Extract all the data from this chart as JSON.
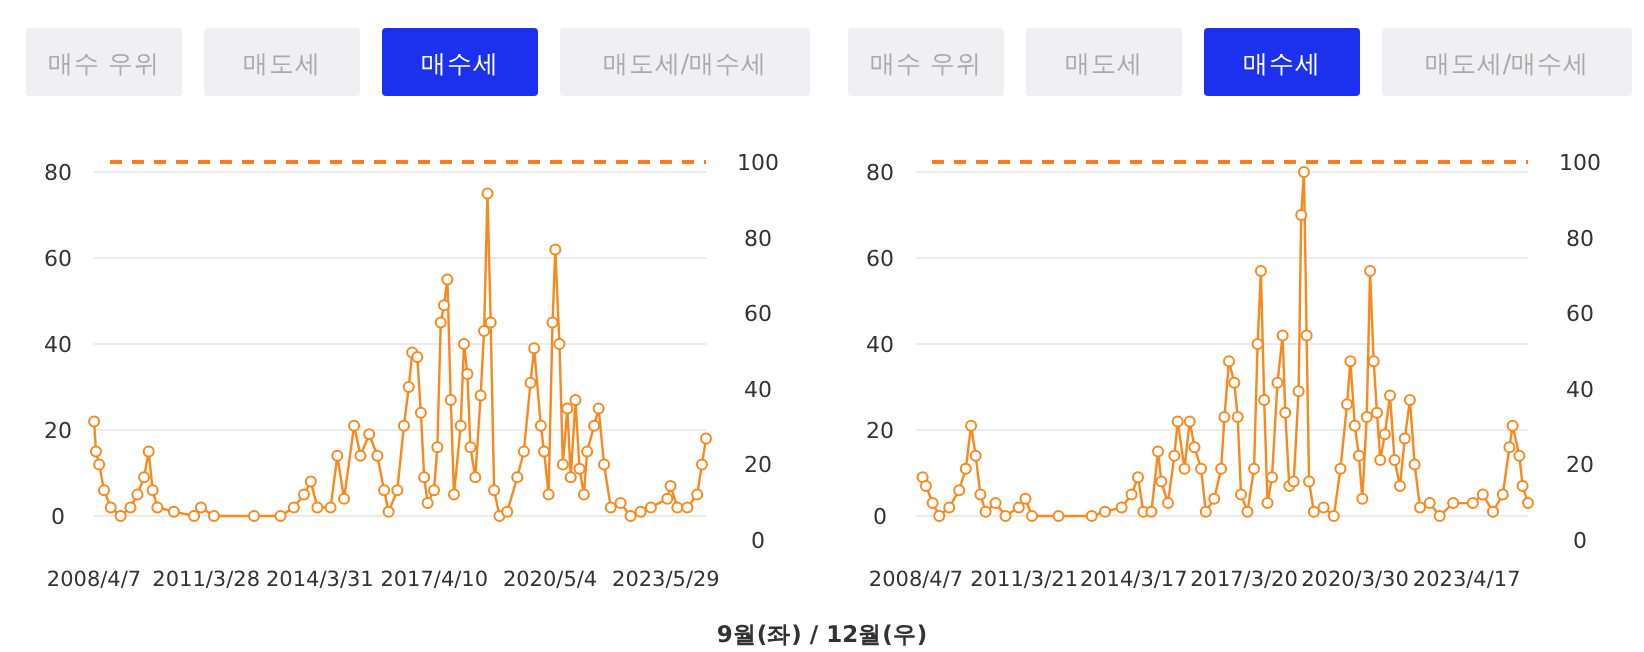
{
  "chart_data": [
    {
      "type": "line",
      "color": "#f7891f",
      "marker": "circle",
      "grid": "y",
      "annotations": [
        "매수 우위",
        "매도세",
        "매수세",
        "매도세/매수세",
        "9월(좌)   /   12월(우)"
      ],
      "x": [
        "2008-04-08",
        "2008-04-26",
        "2008-05-27",
        "2008-07-13",
        "2008-09-16",
        "2008-12-21",
        "2009-03-26",
        "2009-06-01",
        "2009-08-04",
        "2009-09-18",
        "2009-10-26",
        "2009-12-11",
        "2010-05-19",
        "2010-12-01",
        "2011-02-05",
        "2011-06-11",
        "2012-07-03",
        "2013-03-16",
        "2013-07-23",
        "2013-10-28",
        "2014-01-03",
        "2014-03-07",
        "2014-07-13",
        "2014-09-16",
        "2014-11-20",
        "2015-02-25",
        "2015-04-28",
        "2015-07-21",
        "2015-10-08",
        "2015-12-12",
        "2016-01-25",
        "2016-04-18",
        "2016-06-21",
        "2016-08-07",
        "2016-09-09",
        "2016-10-28",
        "2016-12-02",
        "2017-01-03",
        "2017-02-05",
        "2017-04-08",
        "2017-05-10",
        "2017-06-12",
        "2017-07-13",
        "2017-08-15",
        "2017-09-17",
        "2017-10-18",
        "2017-12-22",
        "2018-01-23",
        "2018-02-25",
        "2018-03-26",
        "2018-05-12",
        "2018-07-03",
        "2018-08-05",
        "2018-09-07",
        "2018-10-08",
        "2018-11-10",
        "2019-01-01",
        "2019-03-17",
        "2019-06-22",
        "2019-08-25",
        "2019-10-28",
        "2019-12-02",
        "2020-02-05",
        "2020-03-07",
        "2020-04-20",
        "2020-05-28",
        "2020-06-24",
        "2020-08-03",
        "2020-09-05",
        "2020-10-18",
        "2020-11-20",
        "2021-01-05",
        "2021-02-13",
        "2021-03-27",
        "2021-04-28",
        "2021-07-04",
        "2021-08-17",
        "2021-10-08",
        "2021-12-12",
        "2022-03-17",
        "2022-06-22",
        "2022-09-27",
        "2023-01-04",
        "2023-06-12",
        "2023-07-13",
        "2023-09-17",
        "2023-12-22",
        "2024-03-27",
        "2024-05-12",
        "2024-06-20"
      ],
      "values": [
        22,
        15,
        12,
        6,
        2,
        0,
        2,
        5,
        9,
        15,
        6,
        2,
        1,
        0,
        2,
        0,
        0,
        0,
        2,
        5,
        8,
        2,
        2,
        14,
        4,
        21,
        14,
        19,
        14,
        6,
        1,
        6,
        21,
        30,
        38,
        37,
        24,
        9,
        3,
        6,
        16,
        45,
        49,
        55,
        27,
        5,
        21,
        40,
        33,
        16,
        9,
        28,
        43,
        75,
        45,
        6,
        0,
        1,
        9,
        15,
        31,
        39,
        21,
        15,
        5,
        45,
        62,
        40,
        12,
        25,
        9,
        27,
        11,
        5,
        15,
        21,
        25,
        12,
        2,
        3,
        0,
        1,
        2,
        4,
        7,
        2,
        2,
        5,
        12,
        18
      ],
      "xlim": [
        "2008-04-07",
        "2024-06-20"
      ],
      "xticks": [
        {
          "value": "2008-04-07",
          "label": "2008/4/7"
        },
        {
          "value": "2011-03-28",
          "label": "2011/3/28"
        },
        {
          "value": "2014-03-31",
          "label": "2014/3/31"
        },
        {
          "value": "2017-04-10",
          "label": "2017/4/10"
        },
        {
          "value": "2020-05-04",
          "label": "2020/5/4"
        },
        {
          "value": "2023-05-29",
          "label": "2023/5/29"
        }
      ],
      "ylim": [
        0,
        80
      ],
      "yticks": [
        0,
        20,
        40,
        60,
        80
      ],
      "y2lim": [
        0,
        100
      ],
      "y2ticks": [
        0,
        20,
        40,
        60,
        80,
        100
      ],
      "ref_lines": [
        {
          "axis": "y2",
          "value": 100,
          "color": "#ff7a21",
          "line_style": "dashed"
        }
      ]
    },
    {
      "type": "line",
      "color": "#f7891f",
      "marker": "circle",
      "grid": "y",
      "annotations": [
        "매수 우위",
        "매도세",
        "매수세",
        "매도세/매수세"
      ],
      "x": [
        "2008-06-12",
        "2008-07-15",
        "2008-09-20",
        "2008-11-25",
        "2009-03-04",
        "2009-06-11",
        "2009-08-16",
        "2009-10-08",
        "2009-11-23",
        "2010-01-09",
        "2010-03-02",
        "2010-06-09",
        "2010-09-16",
        "2011-01-26",
        "2011-04-03",
        "2011-06-07",
        "2012-02-26",
        "2013-01-22",
        "2013-06-04",
        "2013-11-16",
        "2014-02-23",
        "2014-04-28",
        "2014-06-21",
        "2014-09-09",
        "2014-11-14",
        "2014-12-17",
        "2015-02-21",
        "2015-04-26",
        "2015-05-29",
        "2015-08-05",
        "2015-09-26",
        "2015-11-12",
        "2016-01-17",
        "2016-03-04",
        "2016-05-27",
        "2016-08-04",
        "2016-09-06",
        "2016-10-21",
        "2016-12-13",
        "2017-01-16",
        "2017-02-18",
        "2017-04-23",
        "2017-06-28",
        "2017-08-02",
        "2017-09-04",
        "2017-10-07",
        "2017-11-09",
        "2017-12-24",
        "2018-02-16",
        "2018-04-09",
        "2018-05-05",
        "2018-06-14",
        "2018-07-28",
        "2018-09-15",
        "2018-10-11",
        "2018-11-07",
        "2018-12-04",
        "2018-12-28",
        "2019-02-14",
        "2019-05-22",
        "2019-09-01",
        "2019-11-06",
        "2020-01-11",
        "2020-02-13",
        "2020-03-28",
        "2020-05-08",
        "2020-06-11",
        "2020-07-25",
        "2020-08-27",
        "2020-10-02",
        "2020-11-04",
        "2020-12-07",
        "2021-01-21",
        "2021-03-14",
        "2021-04-28",
        "2021-06-21",
        "2021-08-08",
        "2021-09-28",
        "2021-11-14",
        "2022-01-07",
        "2022-04-14",
        "2022-07-22",
        "2022-12-03",
        "2023-06-17",
        "2023-09-25",
        "2024-01-04",
        "2024-04-11",
        "2024-06-16",
        "2024-07-18",
        "2024-09-23",
        "2024-10-25",
        "2024-12-18"
      ],
      "values": [
        9,
        7,
        3,
        0,
        2,
        6,
        11,
        21,
        14,
        5,
        1,
        3,
        0,
        2,
        4,
        0,
        0,
        0,
        1,
        2,
        5,
        9,
        1,
        1,
        15,
        8,
        3,
        14,
        22,
        11,
        22,
        16,
        11,
        1,
        4,
        11,
        23,
        36,
        31,
        23,
        5,
        1,
        11,
        40,
        57,
        27,
        3,
        9,
        31,
        42,
        24,
        7,
        8,
        29,
        70,
        80,
        42,
        8,
        1,
        2,
        0,
        11,
        26,
        36,
        21,
        14,
        4,
        23,
        57,
        36,
        24,
        13,
        19,
        28,
        13,
        7,
        18,
        27,
        12,
        2,
        3,
        0,
        3,
        3,
        5,
        1,
        5,
        16,
        21,
        14,
        7,
        3
      ],
      "xlim": [
        "2008-04-07",
        "2024-12-18"
      ],
      "xticks": [
        {
          "value": "2008-04-07",
          "label": "2008/4/7"
        },
        {
          "value": "2011-03-21",
          "label": "2011/3/21"
        },
        {
          "value": "2014-03-17",
          "label": "2014/3/17"
        },
        {
          "value": "2017-03-20",
          "label": "2017/3/20"
        },
        {
          "value": "2020-03-30",
          "label": "2020/3/30"
        },
        {
          "value": "2023-04-17",
          "label": "2023/4/17"
        }
      ],
      "ylim": [
        0,
        80
      ],
      "yticks": [
        0,
        20,
        40,
        60,
        80
      ],
      "y2lim": [
        0,
        100
      ],
      "y2ticks": [
        0,
        20,
        40,
        60,
        80,
        100
      ],
      "ref_lines": [
        {
          "axis": "y2",
          "value": 100,
          "color": "#ff7a21",
          "line_style": "dashed"
        }
      ]
    }
  ]
}
